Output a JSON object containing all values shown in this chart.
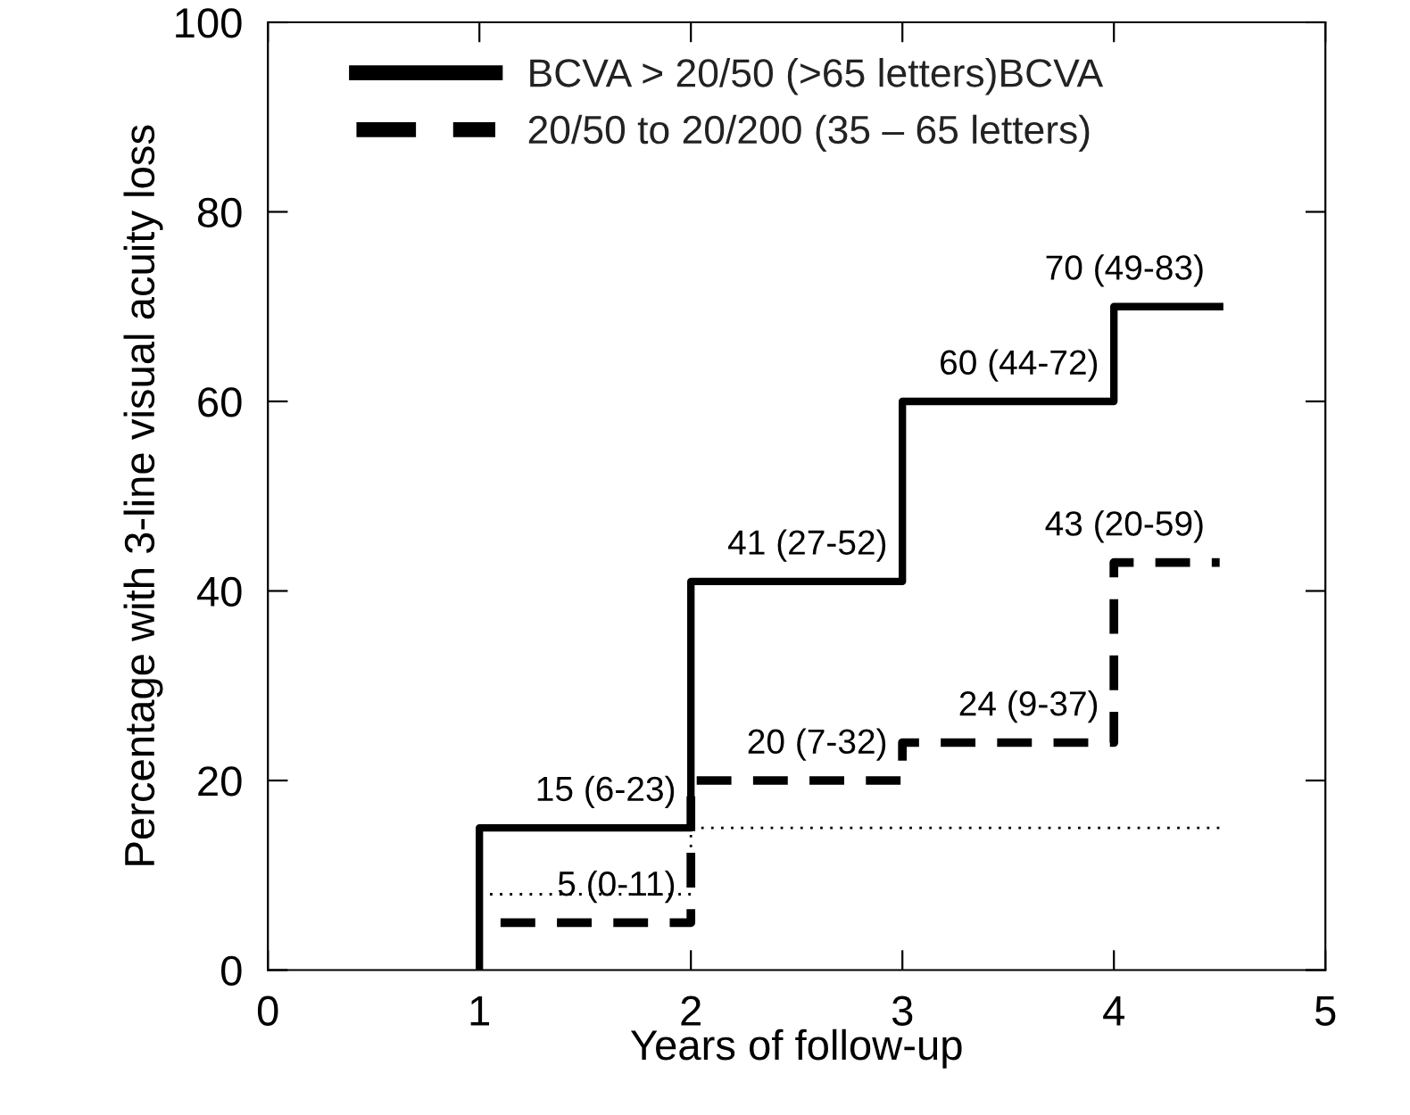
{
  "chart_data": {
    "type": "step",
    "xlabel": "Years of follow-up",
    "ylabel": "Percentage with 3-line visual acuity loss",
    "xlim": [
      0,
      5
    ],
    "ylim": [
      0,
      100
    ],
    "xticks": [
      0,
      1,
      2,
      3,
      4,
      5
    ],
    "yticks": [
      0,
      20,
      40,
      60,
      80,
      100
    ],
    "grid": false,
    "legend": "top left",
    "marker": "none",
    "series": [
      {
        "name": "BCVA > 20/50 (>65 letters)BCVA",
        "color": "#000000",
        "line_style": "solid",
        "x": [
          1,
          1,
          2,
          3,
          4,
          4.5
        ],
        "values": [
          0,
          15,
          41,
          60,
          70,
          70
        ]
      },
      {
        "name": "20/50 to 20/200 (35 – 65 letters)",
        "color": "#000000",
        "line_style": "dashed",
        "x": [
          1.1,
          2,
          3,
          4,
          4.5
        ],
        "values": [
          5,
          20,
          24,
          43,
          43
        ]
      },
      {
        "color": "#000000",
        "line_style": "dotted",
        "x": [
          1.05,
          2,
          4.5
        ],
        "values": [
          8,
          15,
          15
        ]
      }
    ],
    "annotations": [
      {
        "text": "5 (0-11)",
        "x": 2,
        "y": 5
      },
      {
        "text": "15 (6-23)",
        "x": 2,
        "y": 15
      },
      {
        "text": "41 (27-52)",
        "x": 3,
        "y": 41
      },
      {
        "text": "20 (7-32)",
        "x": 3,
        "y": 20
      },
      {
        "text": "60 (44-72)",
        "x": 4,
        "y": 60
      },
      {
        "text": "24 (9-37)",
        "x": 4,
        "y": 24
      },
      {
        "text": "70 (49-83)",
        "x": 4.5,
        "y": 70
      },
      {
        "text": "43 (20-59)",
        "x": 4.5,
        "y": 43
      }
    ]
  }
}
